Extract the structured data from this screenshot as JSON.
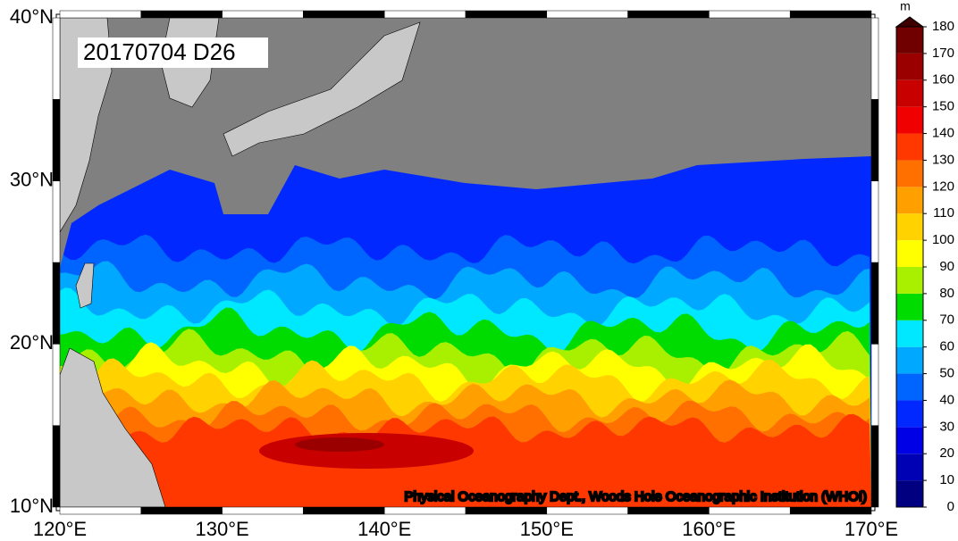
{
  "map": {
    "title": "20170704 D26",
    "credit": "Physical Oceanography Dept., Woods Hole Oceanographic Institution (WHOI)",
    "lon_range": [
      120,
      170
    ],
    "lat_range": [
      10,
      40
    ],
    "lon_ticks": [
      {
        "value": 120,
        "label": "120°E"
      },
      {
        "value": 130,
        "label": "130°E"
      },
      {
        "value": 140,
        "label": "140°E"
      },
      {
        "value": 150,
        "label": "150°E"
      },
      {
        "value": 160,
        "label": "160°E"
      },
      {
        "value": 170,
        "label": "170°E"
      }
    ],
    "lat_ticks": [
      {
        "value": 10,
        "label": "10°N"
      },
      {
        "value": 20,
        "label": "20°N"
      },
      {
        "value": 30,
        "label": "30°N"
      },
      {
        "value": 40,
        "label": "40°N"
      }
    ]
  },
  "colorbar": {
    "unit": "m",
    "ticks": [
      0,
      10,
      20,
      30,
      40,
      50,
      60,
      70,
      80,
      90,
      100,
      110,
      120,
      130,
      140,
      150,
      160,
      170,
      180
    ],
    "colors": [
      "#000080",
      "#0000b4",
      "#0000e6",
      "#0028ff",
      "#0064ff",
      "#00a8ff",
      "#00e8ff",
      "#00dc00",
      "#a8f000",
      "#ffff00",
      "#ffd200",
      "#ffa000",
      "#ff7000",
      "#ff3800",
      "#f00000",
      "#c80000",
      "#9a0000",
      "#700000"
    ],
    "extend_color": "#3c0000"
  }
}
